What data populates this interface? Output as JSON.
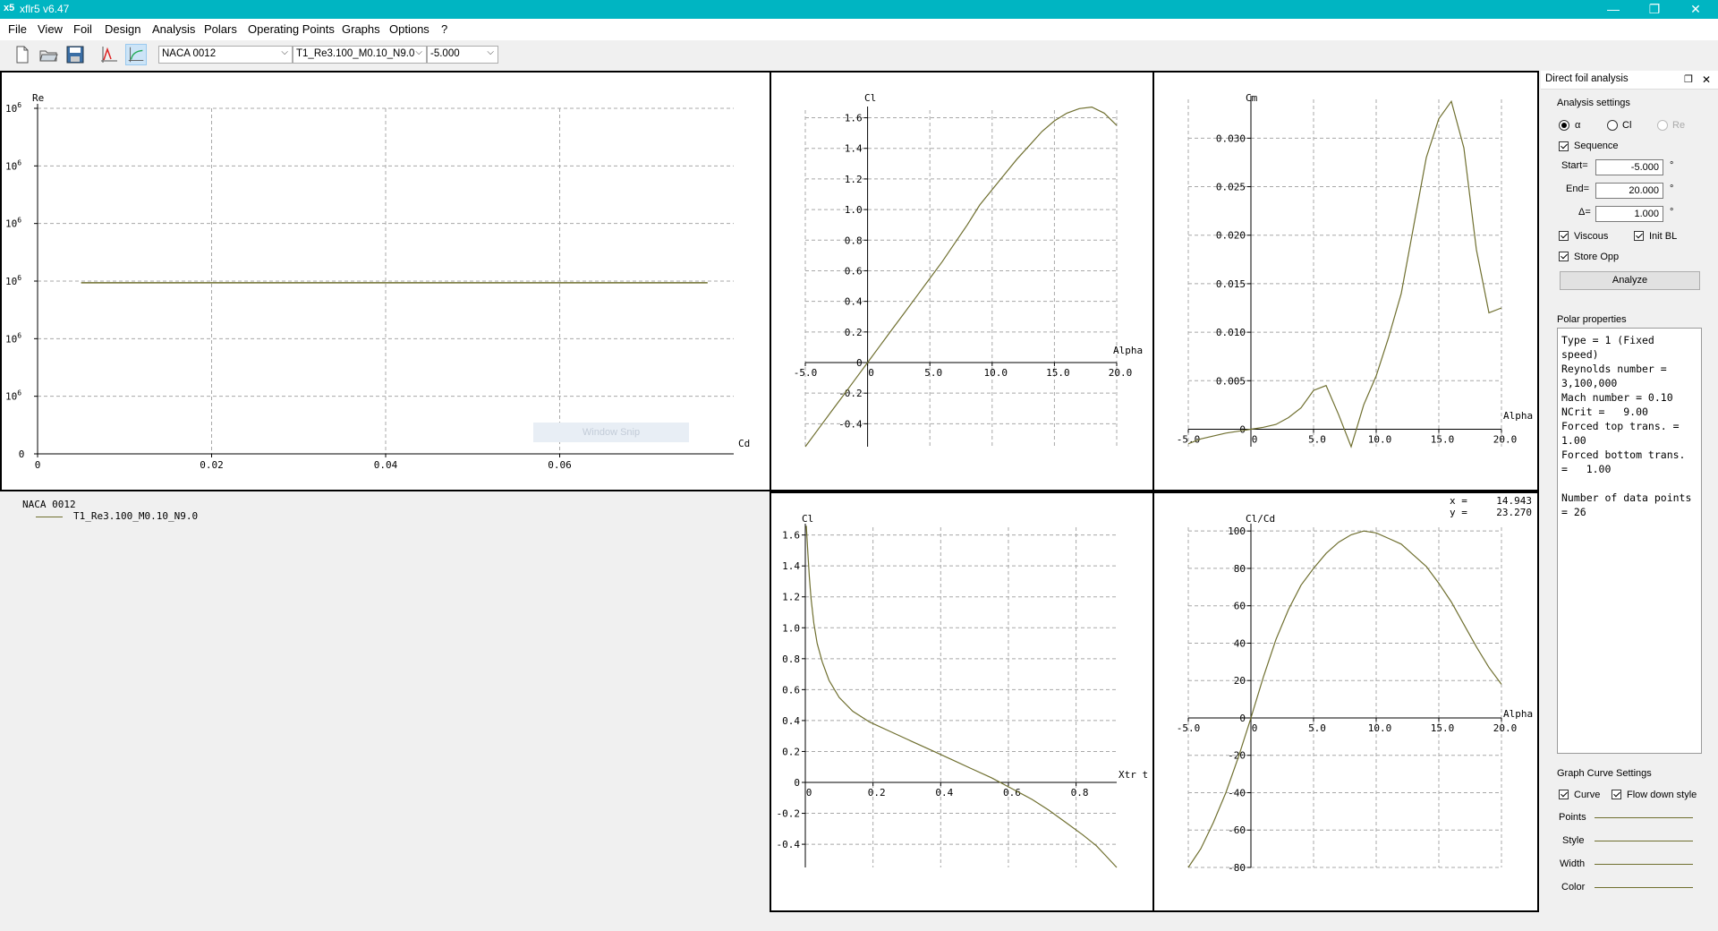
{
  "window": {
    "title": "xflr5 v6.47",
    "minimize": "—",
    "restore": "❐",
    "close": "✕"
  },
  "menu": [
    "File",
    "View",
    "Foil",
    "Design",
    "Analysis",
    "Polars",
    "Operating Points",
    "Graphs",
    "Options",
    "?"
  ],
  "toolbar": {
    "foil_select": "NACA 0012",
    "polar_select": "T1_Re3.100_M0.10_N9.0",
    "opp_select": "-5.000"
  },
  "colors": {
    "titlebar": "#00b5c2",
    "curve": "#6f6f2f",
    "grid": "#a8a8a8"
  },
  "legend": {
    "foil": "NACA 0012",
    "polar": "T1_Re3.100_M0.10_N9.0"
  },
  "cursor_readout": {
    "x_label": "x =",
    "x_value": "14.943",
    "y_label": "y =",
    "y_value": "23.270"
  },
  "watermark": "Window Snip",
  "dock": {
    "title": "Direct foil analysis",
    "analysis_settings": "Analysis settings",
    "radio_alpha": "α",
    "radio_cl": "Cl",
    "radio_re": "Re",
    "sequence": "Sequence",
    "start_label": "Start=",
    "start_value": "-5.000",
    "end_label": "End=",
    "end_value": "20.000",
    "delta_label": "Δ=",
    "delta_value": "1.000",
    "unit": "°",
    "viscous": "Viscous",
    "init_bl": "Init BL",
    "store_opp": "Store Opp",
    "analyze": "Analyze",
    "polar_properties": "Polar properties",
    "polar_text": "Type = 1 (Fixed speed)\nReynolds number = 3,100,000\nMach number = 0.10\nNCrit =   9.00\nForced top trans. =   1.00\nForced bottom trans. =   1.00\n\nNumber of data points = 26",
    "graph_curve_settings": "Graph Curve Settings",
    "curve": "Curve",
    "flow_down_style": "Flow down style",
    "points": "Points",
    "style": "Style",
    "width": "Width",
    "color": "Color"
  },
  "chart_data": [
    {
      "type": "line",
      "title": "",
      "xlabel": "Cd",
      "ylabel": "Re",
      "xlim": [
        0,
        0.08
      ],
      "x_ticks": [
        "0",
        "0.02",
        "0.04",
        "0.06"
      ],
      "y_ticks": [
        "0",
        "10⁶",
        "10⁶",
        "10⁶",
        "10⁶",
        "10⁶",
        "10⁶"
      ],
      "series": [
        {
          "x": [
            0.005,
            0.077
          ],
          "y": [
            3100000,
            3100000
          ]
        }
      ]
    },
    {
      "type": "line",
      "xlabel": "Alpha",
      "ylabel": "Cl",
      "xlim": [
        -5,
        20
      ],
      "ylim": [
        -0.55,
        1.65
      ],
      "x_ticks": [
        "-5.0",
        "0",
        "5.0",
        "10.0",
        "15.0",
        "20.0"
      ],
      "y_ticks": [
        "-0.4",
        "-0.2",
        "0",
        "0.2",
        "0.4",
        "0.6",
        "0.8",
        "1.0",
        "1.2",
        "1.4",
        "1.6"
      ],
      "series": [
        {
          "x": [
            -5,
            -4,
            -3,
            -2,
            -1,
            0,
            1,
            2,
            3,
            4,
            5,
            6,
            7,
            8,
            9,
            10,
            11,
            12,
            13,
            14,
            15,
            16,
            17,
            18,
            19,
            20
          ],
          "y": [
            -0.55,
            -0.44,
            -0.33,
            -0.22,
            -0.11,
            0.0,
            0.11,
            0.22,
            0.33,
            0.44,
            0.55,
            0.66,
            0.78,
            0.9,
            1.03,
            1.13,
            1.23,
            1.33,
            1.42,
            1.51,
            1.58,
            1.63,
            1.66,
            1.67,
            1.63,
            1.55
          ]
        }
      ]
    },
    {
      "type": "line",
      "xlabel": "Alpha",
      "ylabel": "Cm",
      "xlim": [
        -5,
        20
      ],
      "ylim": [
        -0.0018,
        0.034
      ],
      "x_ticks": [
        "-5.0",
        "0",
        "5.0",
        "10.0",
        "15.0",
        "20.0"
      ],
      "y_ticks": [
        "0",
        "0.005",
        "0.010",
        "0.015",
        "0.020",
        "0.025",
        "0.030"
      ],
      "series": [
        {
          "x": [
            -5,
            -4,
            -3,
            -2,
            -1,
            0,
            1,
            2,
            3,
            4,
            5,
            6,
            7,
            8,
            9,
            10,
            11,
            12,
            13,
            14,
            15,
            16,
            17,
            18,
            19,
            20
          ],
          "y": [
            -0.0015,
            -0.001,
            -0.0007,
            -0.0004,
            -0.0002,
            0.0,
            0.0002,
            0.0005,
            0.0012,
            0.0022,
            0.004,
            0.0045,
            0.0015,
            -0.0018,
            0.0025,
            0.0055,
            0.0095,
            0.014,
            0.021,
            0.028,
            0.032,
            0.0338,
            0.029,
            0.0185,
            0.012,
            0.0125
          ]
        }
      ]
    },
    {
      "type": "line",
      "xlabel": "Xtr t",
      "ylabel": "Cl",
      "xlim": [
        0,
        0.92
      ],
      "ylim": [
        -0.55,
        1.65
      ],
      "x_ticks": [
        "0",
        "0.2",
        "0.4",
        "0.6",
        "0.8"
      ],
      "y_ticks": [
        "-0.4",
        "-0.2",
        "0",
        "0.2",
        "0.4",
        "0.6",
        "0.8",
        "1.0",
        "1.2",
        "1.4",
        "1.6"
      ],
      "series": [
        {
          "x": [
            0.003,
            0.005,
            0.008,
            0.012,
            0.017,
            0.025,
            0.035,
            0.05,
            0.07,
            0.1,
            0.14,
            0.19,
            0.25,
            0.31,
            0.37,
            0.43,
            0.49,
            0.55,
            0.61,
            0.67,
            0.72,
            0.77,
            0.82,
            0.86,
            0.89,
            0.92
          ],
          "y": [
            1.66,
            1.58,
            1.47,
            1.33,
            1.19,
            1.03,
            0.9,
            0.78,
            0.66,
            0.55,
            0.46,
            0.39,
            0.33,
            0.27,
            0.21,
            0.15,
            0.09,
            0.03,
            -0.04,
            -0.11,
            -0.18,
            -0.26,
            -0.34,
            -0.41,
            -0.48,
            -0.55
          ]
        }
      ]
    },
    {
      "type": "line",
      "xlabel": "Alpha",
      "ylabel": "Cl/Cd",
      "xlim": [
        -5,
        20
      ],
      "ylim": [
        -80,
        102
      ],
      "x_ticks": [
        "-5.0",
        "0",
        "5.0",
        "10.0",
        "15.0",
        "20.0"
      ],
      "y_ticks": [
        "-80",
        "-60",
        "-40",
        "-20",
        "0",
        "20",
        "40",
        "60",
        "80",
        "100"
      ],
      "series": [
        {
          "x": [
            -5,
            -4,
            -3,
            -2,
            -1,
            0,
            1,
            2,
            3,
            4,
            5,
            6,
            7,
            8,
            9,
            10,
            11,
            12,
            13,
            14,
            15,
            16,
            17,
            18,
            19,
            20
          ],
          "y": [
            -80,
            -70,
            -56,
            -40,
            -21,
            0,
            22,
            42,
            58,
            71,
            80,
            88,
            94,
            98,
            100,
            99,
            96,
            93,
            87,
            81,
            72,
            62,
            50,
            38,
            27,
            18
          ]
        }
      ]
    }
  ]
}
